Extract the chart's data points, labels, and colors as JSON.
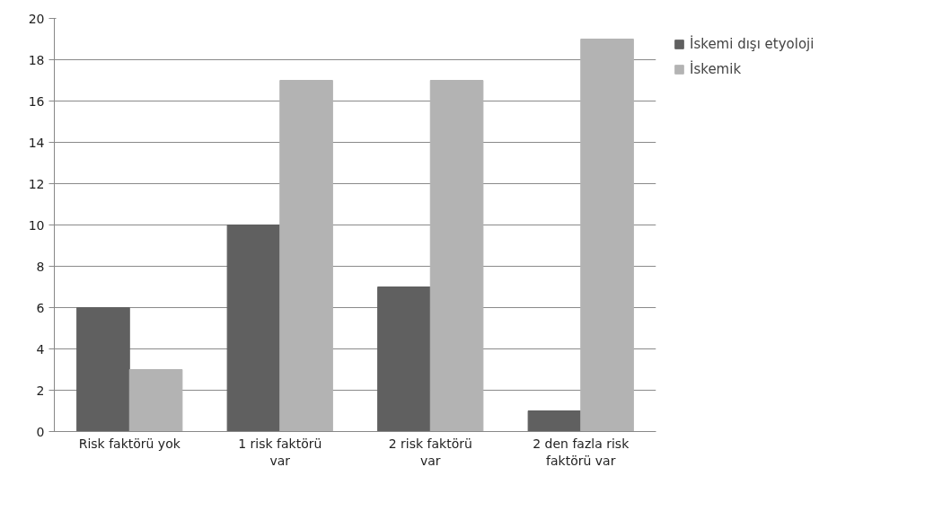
{
  "chart_data": {
    "type": "bar",
    "categories": [
      "Risk faktörü yok",
      "1 risk faktörü var",
      "2 risk faktörü var",
      "2 den fazla risk faktörü var"
    ],
    "series": [
      {
        "name": "İskemi dışı etyoloji",
        "color": "#606060",
        "values": [
          6,
          10,
          7,
          1
        ]
      },
      {
        "name": "İskemik",
        "color": "#b3b3b3",
        "values": [
          3,
          17,
          17,
          19
        ]
      }
    ],
    "ylim": [
      0,
      20
    ],
    "yticks": [
      0,
      2,
      4,
      6,
      8,
      10,
      12,
      14,
      16,
      18,
      20
    ],
    "grid": "y",
    "legend": "right"
  }
}
